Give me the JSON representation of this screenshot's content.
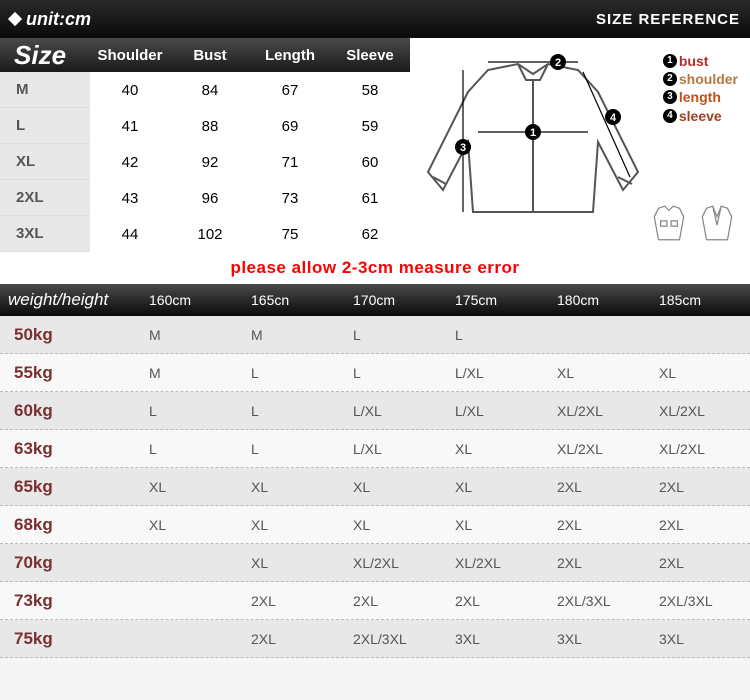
{
  "banner": {
    "unit": "unit:cm",
    "ref": "SIZE REFERENCE"
  },
  "sizeTable": {
    "title": "Size",
    "columns": [
      "Shoulder",
      "Bust",
      "Length",
      "Sleeve"
    ],
    "rows": [
      {
        "label": "M",
        "vals": [
          "40",
          "84",
          "67",
          "58"
        ]
      },
      {
        "label": "L",
        "vals": [
          "41",
          "88",
          "69",
          "59"
        ]
      },
      {
        "label": "XL",
        "vals": [
          "42",
          "92",
          "71",
          "60"
        ]
      },
      {
        "label": "2XL",
        "vals": [
          "43",
          "96",
          "73",
          "61"
        ]
      },
      {
        "label": "3XL",
        "vals": [
          "44",
          "102",
          "75",
          "62"
        ]
      }
    ]
  },
  "legend": {
    "items": [
      {
        "num": "1",
        "text": "bust",
        "cls": "lg-bust"
      },
      {
        "num": "2",
        "text": "shoulder",
        "cls": "lg-shoulder"
      },
      {
        "num": "3",
        "text": "length",
        "cls": "lg-length"
      },
      {
        "num": "4",
        "text": "sleeve",
        "cls": "lg-sleeve"
      }
    ]
  },
  "errorNote": "please allow 2-3cm measure error",
  "whTable": {
    "title": "weight/height",
    "columns": [
      "160cm",
      "165cn",
      "170cm",
      "175cm",
      "180cm",
      "185cm"
    ],
    "rows": [
      {
        "label": "50kg",
        "vals": [
          "M",
          "M",
          "L",
          "L",
          "",
          ""
        ]
      },
      {
        "label": "55kg",
        "vals": [
          "M",
          "L",
          "L",
          "L/XL",
          "XL",
          "XL"
        ]
      },
      {
        "label": "60kg",
        "vals": [
          "L",
          "L",
          "L/XL",
          "L/XL",
          "XL/2XL",
          "XL/2XL"
        ]
      },
      {
        "label": "63kg",
        "vals": [
          "L",
          "L",
          "L/XL",
          "XL",
          "XL/2XL",
          "XL/2XL"
        ]
      },
      {
        "label": "65kg",
        "vals": [
          "XL",
          "XL",
          "XL",
          "XL",
          "2XL",
          "2XL"
        ]
      },
      {
        "label": "68kg",
        "vals": [
          "XL",
          "XL",
          "XL",
          "XL",
          "2XL",
          "2XL"
        ]
      },
      {
        "label": "70kg",
        "vals": [
          "",
          "XL",
          "XL/2XL",
          "XL/2XL",
          "2XL",
          "2XL"
        ]
      },
      {
        "label": "73kg",
        "vals": [
          "",
          "2XL",
          "2XL",
          "2XL",
          "2XL/3XL",
          "2XL/3XL"
        ]
      },
      {
        "label": "75kg",
        "vals": [
          "",
          "2XL",
          "2XL/3XL",
          "3XL",
          "3XL",
          "3XL"
        ]
      }
    ]
  },
  "colors": {
    "bannerGradient": [
      "#2a2a2a",
      "#0a0a0a"
    ],
    "headerGradient": [
      "#4a4a4a",
      "#1a1a1a"
    ],
    "rowAlt": "#e8e8e8",
    "errorText": "#ff0000",
    "weightLabel": "#7a3030"
  }
}
